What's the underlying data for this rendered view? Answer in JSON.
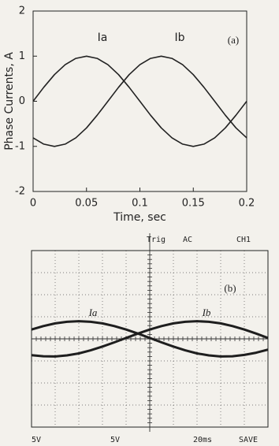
{
  "chart_data": [
    {
      "type": "line",
      "xlabel": "Time, sec",
      "ylabel": "Phase Currents, A",
      "annotations": [
        "Ia",
        "Ib",
        "(a)"
      ],
      "x": [
        0,
        0.01,
        0.02,
        0.03,
        0.04,
        0.05,
        0.06,
        0.07,
        0.08,
        0.09,
        0.1,
        0.11,
        0.12,
        0.13,
        0.14,
        0.15,
        0.16,
        0.17,
        0.18,
        0.19,
        0.2
      ],
      "series": [
        {
          "name": "Ia",
          "color": "#222222",
          "values": [
            0,
            0.31,
            0.59,
            0.81,
            0.95,
            1,
            0.95,
            0.81,
            0.59,
            0.31,
            0,
            -0.31,
            -0.59,
            -0.81,
            -0.95,
            -1,
            -0.95,
            -0.81,
            -0.59,
            -0.31,
            0
          ]
        },
        {
          "name": "Ib",
          "color": "#222222",
          "values": [
            -0.81,
            -0.95,
            -1,
            -0.95,
            -0.81,
            -0.59,
            -0.31,
            0,
            0.31,
            0.59,
            0.81,
            0.95,
            1,
            0.95,
            0.81,
            0.59,
            0.31,
            0,
            -0.31,
            -0.59,
            -0.81
          ]
        }
      ],
      "xlim": [
        0,
        0.2
      ],
      "xticks": [
        0,
        0.05,
        0.1,
        0.15,
        0.2
      ],
      "ylim": [
        -2,
        2
      ],
      "yticks": [
        -2,
        -1,
        0,
        1,
        2
      ],
      "grid": false
    },
    {
      "type": "line",
      "labels_top": [
        "Trig",
        "AC",
        "CH1"
      ],
      "labels_bottom": [
        "5V",
        "5V",
        "20ms",
        "SAVE"
      ],
      "annotations": [
        "Ia",
        "Ib",
        "(b)"
      ],
      "x": [
        0,
        0.5,
        1,
        1.5,
        2,
        2.5,
        3,
        3.5,
        4,
        4.5,
        5,
        5.5,
        6,
        6.5,
        7,
        7.5,
        8,
        8.5,
        9,
        9.5,
        10
      ],
      "series": [
        {
          "name": "Ia",
          "color": "#1e1e1e",
          "values": [
            0.42,
            0.58,
            0.7,
            0.77,
            0.8,
            0.77,
            0.7,
            0.58,
            0.42,
            0.24,
            0.04,
            -0.16,
            -0.35,
            -0.52,
            -0.66,
            -0.75,
            -0.8,
            -0.79,
            -0.73,
            -0.63,
            -0.49
          ]
        },
        {
          "name": "Ib",
          "color": "#1e1e1e",
          "values": [
            -0.74,
            -0.79,
            -0.8,
            -0.75,
            -0.66,
            -0.52,
            -0.35,
            -0.16,
            0.04,
            0.24,
            0.42,
            0.58,
            0.7,
            0.77,
            0.8,
            0.77,
            0.7,
            0.58,
            0.42,
            0.24,
            0.04
          ]
        }
      ],
      "xlim": [
        0,
        10
      ],
      "ylim": [
        -4,
        4
      ],
      "grid": true
    }
  ]
}
